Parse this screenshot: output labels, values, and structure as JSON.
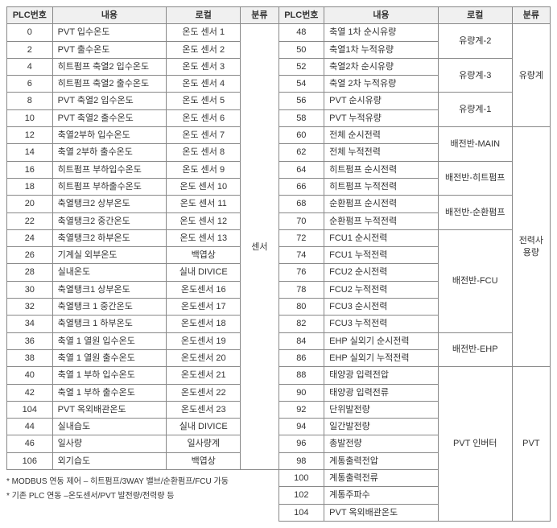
{
  "headers": {
    "plc": "PLC번호",
    "content": "내용",
    "local": "로컬",
    "cat": "분류"
  },
  "left": {
    "cat": "센서",
    "rows": [
      {
        "plc": "0",
        "content": "PVT 입수온도",
        "local": "온도 센서 1"
      },
      {
        "plc": "2",
        "content": "PVT 출수온도",
        "local": "온도 센서 2"
      },
      {
        "plc": "4",
        "content": "히트펌프 축열2 입수온도",
        "local": "온도 센서 3"
      },
      {
        "plc": "6",
        "content": "히트펌프 축열2 출수온도",
        "local": "온도 센서 4"
      },
      {
        "plc": "8",
        "content": "PVT 축열2 입수온도",
        "local": "온도 센서 5"
      },
      {
        "plc": "10",
        "content": "PVT 축열2 출수온도",
        "local": "온도 센서 6"
      },
      {
        "plc": "12",
        "content": "축열2부하 입수온도",
        "local": "온도 센서 7"
      },
      {
        "plc": "14",
        "content": "축열 2부하 출수온도",
        "local": "온도 센서 8"
      },
      {
        "plc": "16",
        "content": "히트펌프 부하입수온도",
        "local": "온도 센서 9"
      },
      {
        "plc": "18",
        "content": "히트펌프 부하출수온도",
        "local": "온도 센서 10"
      },
      {
        "plc": "20",
        "content": "축열탱크2 상부온도",
        "local": "온도 센서 11"
      },
      {
        "plc": "22",
        "content": "축열탱크2 중간온도",
        "local": "온도 센서 12"
      },
      {
        "plc": "24",
        "content": "축열탱크2 하부온도",
        "local": "온도 센서 13"
      },
      {
        "plc": "26",
        "content": "기계실 외부온도",
        "local": "백엽상"
      },
      {
        "plc": "28",
        "content": "실내온도",
        "local": "실내 DIVICE"
      },
      {
        "plc": "30",
        "content": "축열탱크1 상부온도",
        "local": "온도센서 16"
      },
      {
        "plc": "32",
        "content": "축열탱크 1 중간온도",
        "local": "온도센서 17"
      },
      {
        "plc": "34",
        "content": "축열탱크 1 하부온도",
        "local": "온도센서 18"
      },
      {
        "plc": "36",
        "content": "축열 1 열원 입수온도",
        "local": "온도센서 19"
      },
      {
        "plc": "38",
        "content": "축열 1 열원 출수온도",
        "local": "온도센서 20"
      },
      {
        "plc": "40",
        "content": "축열 1 부하 입수온도",
        "local": "온도센서 21"
      },
      {
        "plc": "42",
        "content": "축열 1 부하 출수온도",
        "local": "온도센서 22"
      },
      {
        "plc": "104",
        "content": "PVT 옥외배관온도",
        "local": "온도센서 23"
      },
      {
        "plc": "44",
        "content": "실내습도",
        "local": "실내 DIVICE"
      },
      {
        "plc": "46",
        "content": "일사량",
        "local": "일사량계"
      },
      {
        "plc": "106",
        "content": "외기습도",
        "local": "백엽상"
      }
    ]
  },
  "right": {
    "blocks": [
      {
        "cat": "유량계",
        "groups": [
          {
            "local": "유량계-2",
            "rows": [
              {
                "plc": "48",
                "content": "축열 1차 순시유량"
              },
              {
                "plc": "50",
                "content": "축열1차 누적유량"
              }
            ]
          },
          {
            "local": "유량계-3",
            "rows": [
              {
                "plc": "52",
                "content": "축열2차 순시유량"
              },
              {
                "plc": "54",
                "content": "축열 2차 누적유량"
              }
            ]
          },
          {
            "local": "유량계-1",
            "rows": [
              {
                "plc": "56",
                "content": "PVT 순시유량"
              },
              {
                "plc": "58",
                "content": "PVT 누적유량"
              }
            ]
          }
        ]
      },
      {
        "cat": "전력사용량",
        "groups": [
          {
            "local": "배전반-MAIN",
            "rows": [
              {
                "plc": "60",
                "content": "전체 순시전력"
              },
              {
                "plc": "62",
                "content": "전체 누적전력"
              }
            ]
          },
          {
            "local": "배전반-히트펌프",
            "rows": [
              {
                "plc": "64",
                "content": "히트펌프 순시전력"
              },
              {
                "plc": "66",
                "content": "히트펌프 누적전력"
              }
            ]
          },
          {
            "local": "배전반-순환펌프",
            "rows": [
              {
                "plc": "68",
                "content": "순환펌프 순시전력"
              },
              {
                "plc": "70",
                "content": "순환펌프 누적전력"
              }
            ]
          },
          {
            "local": "배전반-FCU",
            "rows": [
              {
                "plc": "72",
                "content": "FCU1 순시전력"
              },
              {
                "plc": "74",
                "content": "FCU1 누적전력"
              },
              {
                "plc": "76",
                "content": "FCU2 순시전력"
              },
              {
                "plc": "78",
                "content": "FCU2 누적전력"
              },
              {
                "plc": "80",
                "content": "FCU3 순시전력"
              },
              {
                "plc": "82",
                "content": "FCU3 누적전력"
              }
            ]
          },
          {
            "local": "배전반-EHP",
            "rows": [
              {
                "plc": "84",
                "content": "EHP 실외기 순시전력"
              },
              {
                "plc": "86",
                "content": "EHP 실외기 누적전력"
              }
            ]
          }
        ]
      },
      {
        "cat": "PVT",
        "groups": [
          {
            "local": "PVT 인버터",
            "rows": [
              {
                "plc": "88",
                "content": "태양광 입력전압"
              },
              {
                "plc": "90",
                "content": "태양광 입력전류"
              },
              {
                "plc": "92",
                "content": "단위발전량"
              },
              {
                "plc": "94",
                "content": "일간발전량"
              },
              {
                "plc": "96",
                "content": "총발전량"
              },
              {
                "plc": "98",
                "content": "계통출력전압"
              },
              {
                "plc": "100",
                "content": "계통출력전류"
              },
              {
                "plc": "102",
                "content": "계통주파수"
              },
              {
                "plc": "104",
                "content": "PVT 옥외배관온도"
              }
            ]
          }
        ]
      }
    ]
  },
  "notes": [
    "* MODBUS 연동 제어 – 히트펌프/3WAY 밸브/순환펌프/FCU 가동",
    "* 기존 PLC 연동 –온도센서/PVT 발전량/전력량 등"
  ]
}
